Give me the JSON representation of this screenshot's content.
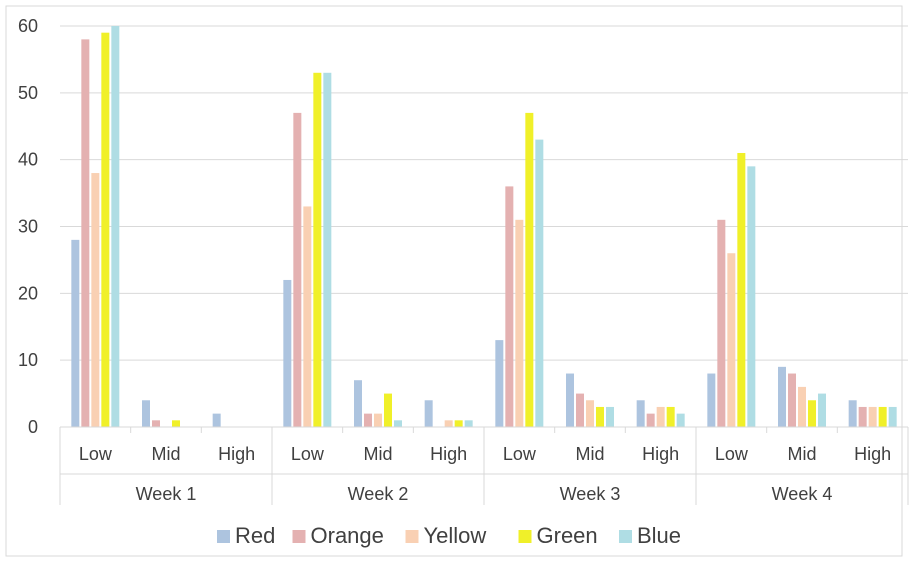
{
  "chart_data": {
    "type": "bar",
    "title": "",
    "xlabel": "",
    "ylabel": "",
    "ylim": [
      0,
      60
    ],
    "yticks": [
      0,
      10,
      20,
      30,
      40,
      50,
      60
    ],
    "grid": true,
    "legend_position": "bottom",
    "groups": [
      "Week 1",
      "Week 2",
      "Week 3",
      "Week 4"
    ],
    "subcategories": [
      "Low",
      "Mid",
      "High"
    ],
    "categories": [
      "Week 1 Low",
      "Week 1 Mid",
      "Week 1 High",
      "Week 2 Low",
      "Week 2 Mid",
      "Week 2 High",
      "Week 3 Low",
      "Week 3 Mid",
      "Week 3 High",
      "Week 4 Low",
      "Week 4 Mid",
      "Week 4 High"
    ],
    "series": [
      {
        "name": "Red",
        "color": "#adc4df",
        "values": [
          28,
          4,
          2,
          22,
          7,
          4,
          13,
          8,
          4,
          8,
          9,
          4
        ]
      },
      {
        "name": "Orange",
        "color": "#e4b1b1",
        "values": [
          58,
          1,
          0,
          47,
          2,
          0,
          36,
          5,
          2,
          31,
          8,
          3
        ]
      },
      {
        "name": "Yellow",
        "color": "#f9d0b3",
        "values": [
          38,
          0,
          0,
          33,
          2,
          1,
          31,
          4,
          3,
          26,
          6,
          3
        ]
      },
      {
        "name": "Green",
        "color": "#f0f029",
        "values": [
          59,
          1,
          0,
          53,
          5,
          1,
          47,
          3,
          3,
          41,
          4,
          3
        ]
      },
      {
        "name": "Blue",
        "color": "#afdde4",
        "values": [
          60,
          0,
          0,
          53,
          1,
          1,
          43,
          3,
          2,
          39,
          5,
          3
        ]
      }
    ]
  }
}
